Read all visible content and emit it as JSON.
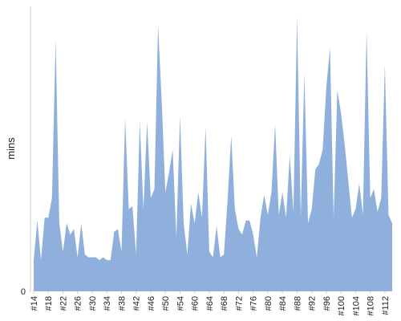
{
  "chart_data": {
    "type": "area",
    "y_label": "mins",
    "color": "#8fb0dc",
    "categories": [
      "#14",
      null,
      null,
      null,
      "#18",
      null,
      null,
      null,
      "#22",
      null,
      null,
      null,
      "#26",
      null,
      null,
      null,
      "#30",
      null,
      null,
      null,
      "#34",
      null,
      null,
      null,
      "#38",
      null,
      null,
      null,
      "#42",
      null,
      null,
      null,
      "#46",
      null,
      null,
      null,
      "#50",
      null,
      null,
      null,
      "#54",
      null,
      null,
      null,
      "#60",
      null,
      null,
      null,
      "#64",
      null,
      null,
      null,
      "#68",
      null,
      null,
      null,
      "#72",
      null,
      null,
      null,
      "#76",
      null,
      null,
      null,
      "#80",
      null,
      null,
      null,
      "#84",
      null,
      null,
      null,
      "#88",
      null,
      null,
      null,
      "#92",
      null,
      null,
      null,
      "#96",
      null,
      null,
      null,
      "#100",
      null,
      null,
      null,
      "#104",
      null,
      null,
      null,
      "#108",
      null,
      null,
      null,
      "#112",
      null,
      null
    ],
    "values": [
      11,
      25,
      11,
      26,
      26,
      33,
      89,
      24,
      14,
      24,
      20,
      22,
      12,
      24,
      13,
      12,
      12,
      12,
      11,
      12,
      11,
      11,
      21,
      22,
      14,
      61,
      29,
      30,
      13,
      60,
      29,
      60,
      33,
      36,
      94,
      67,
      35,
      42,
      50,
      19,
      62,
      24,
      13,
      31,
      24,
      35,
      26,
      58,
      14,
      12,
      23,
      12,
      13,
      32,
      55,
      29,
      22,
      20,
      25,
      25,
      20,
      12,
      26,
      34,
      27,
      35,
      59,
      27,
      35,
      26,
      48,
      28,
      97,
      26,
      77,
      24,
      29,
      43,
      45,
      50,
      72,
      86,
      26,
      71,
      63,
      52,
      39,
      26,
      29,
      38,
      27,
      92,
      33,
      36,
      28,
      33,
      80,
      27,
      24
    ],
    "ylim": [
      0,
      100
    ],
    "yticks": [
      0
    ]
  }
}
